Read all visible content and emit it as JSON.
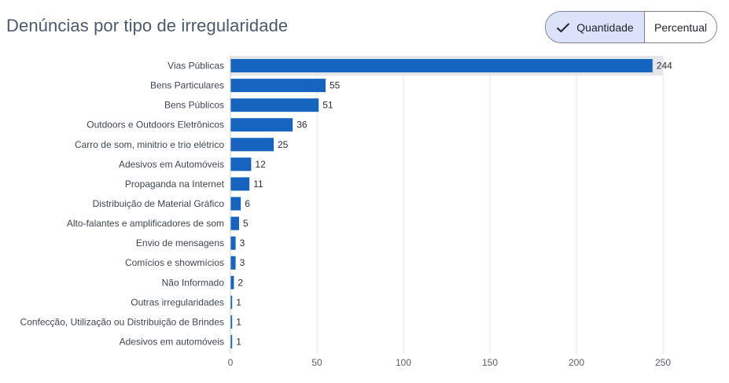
{
  "header": {
    "title": "Denúncias por tipo de irregularidade"
  },
  "toggle": {
    "quantity_label": "Quantidade",
    "percent_label": "Percentual",
    "selected": "Quantidade"
  },
  "colors": {
    "bar": "#1565c0",
    "highlight_band": "#e4e6ea",
    "grid": "#e3e5e8",
    "toggle_active_bg": "#dce2f9"
  },
  "chart_data": {
    "type": "bar",
    "orientation": "horizontal",
    "title": "Denúncias por tipo de irregularidade",
    "categories": [
      "Vias Públicas",
      "Bens Particulares",
      "Bens Públicos",
      "Outdoors e Outdoors Eletrônicos",
      "Carro de som, minitrio e trio elétrico",
      "Adesivos em Automóveis",
      "Propaganda na Internet",
      "Distribuição de Material Gráfico",
      "Alto-falantes e amplificadores de som",
      "Envio de mensagens",
      "Comícios e showmícios",
      "Não Informado",
      "Outras irregularidades",
      "Confecção, Utilização ou Distribuição de Brindes",
      "Adesivos em automóveis"
    ],
    "values": [
      244,
      55,
      51,
      36,
      25,
      12,
      11,
      6,
      5,
      3,
      3,
      2,
      1,
      1,
      1
    ],
    "xlim": [
      0,
      250
    ],
    "xticks": [
      0,
      50,
      100,
      150,
      200,
      250
    ],
    "grid": true,
    "highlighted_category": "Vias Públicas"
  }
}
